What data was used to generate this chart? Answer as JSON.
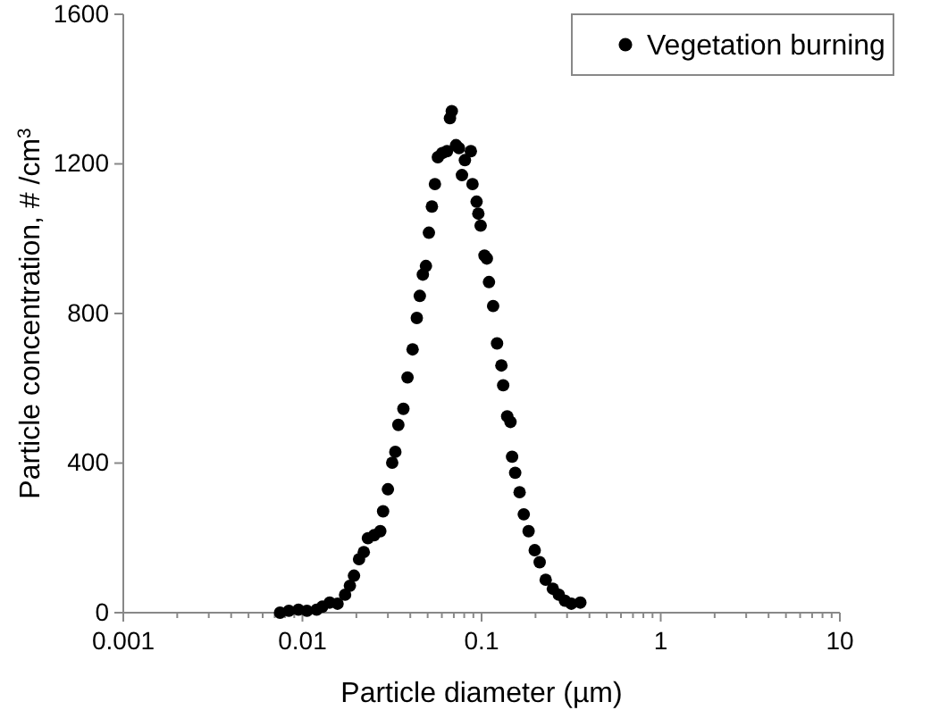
{
  "chart_data": {
    "type": "scatter",
    "xlabel": "Particle diameter (µm)",
    "ylabel": "Particle concentration, # /cm$^{3}$",
    "log": "x",
    "xlim": [
      0.001,
      10
    ],
    "xticks": [
      0.001,
      0.01,
      0.1,
      1,
      10
    ],
    "ylim": [
      0,
      1600
    ],
    "yticks": [
      0,
      400,
      800,
      1200,
      1600
    ],
    "grid": false,
    "legend": "top right",
    "marker": "circle",
    "series": [
      {
        "name": "Vegetation burning",
        "color": "#000000",
        "x": [
          0.0075,
          0.0084,
          0.0095,
          0.0106,
          0.012,
          0.0129,
          0.0142,
          0.0157,
          0.0173,
          0.0184,
          0.0194,
          0.0207,
          0.022,
          0.0232,
          0.0251,
          0.0272,
          0.0282,
          0.03,
          0.0317,
          0.033,
          0.0343,
          0.0366,
          0.0386,
          0.0412,
          0.0435,
          0.0452,
          0.047,
          0.0489,
          0.0508,
          0.0528,
          0.0549,
          0.057,
          0.0603,
          0.0641,
          0.0666,
          0.0682,
          0.072,
          0.0748,
          0.0777,
          0.0807,
          0.0871,
          0.089,
          0.0938,
          0.0959,
          0.0988,
          0.1038,
          0.107,
          0.11,
          0.116,
          0.122,
          0.129,
          0.132,
          0.139,
          0.145,
          0.148,
          0.154,
          0.163,
          0.172,
          0.183,
          0.198,
          0.211,
          0.228,
          0.25,
          0.27,
          0.292,
          0.317,
          0.356
        ],
        "values": [
          0,
          5,
          8,
          5,
          8,
          16,
          27,
          24,
          48,
          72,
          99,
          143,
          162,
          199,
          207,
          218,
          271,
          330,
          401,
          430,
          502,
          545,
          629,
          704,
          788,
          847,
          904,
          927,
          1016,
          1086,
          1146,
          1218,
          1229,
          1234,
          1322,
          1341,
          1250,
          1242,
          1170,
          1210,
          1234,
          1146,
          1099,
          1067,
          1035,
          955,
          947,
          884,
          820,
          720,
          661,
          608,
          525,
          510,
          417,
          374,
          322,
          263,
          218,
          167,
          135,
          88,
          64,
          48,
          32,
          24,
          27
        ]
      }
    ]
  }
}
